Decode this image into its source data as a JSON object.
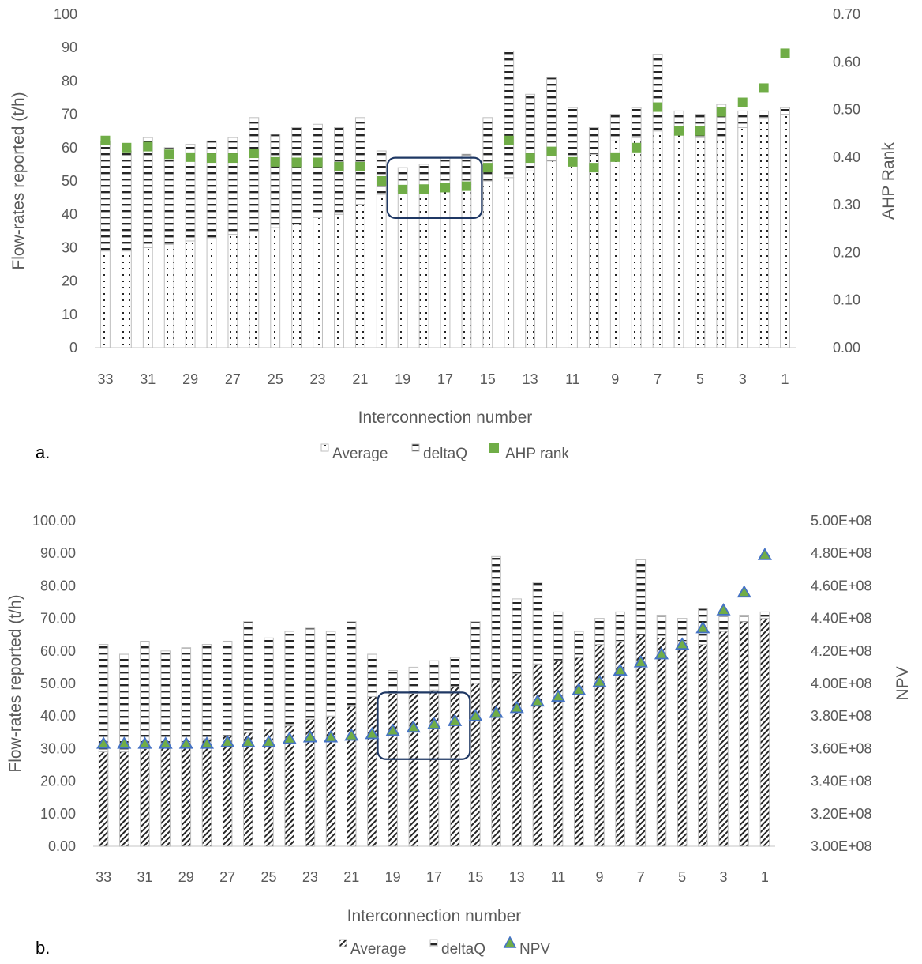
{
  "colors": {
    "ahp": "#70AD47",
    "npv_fill": "#70AD47",
    "npv_stroke": "#4472C4",
    "bar_outline": "#bfbfbf",
    "stripe_dark": "#262626",
    "highlight_box": "#1F3864",
    "grid": "#d9d9d9",
    "text": "#595959"
  },
  "chart_data": [
    {
      "type": "bar",
      "panel_label": "a.",
      "xlabel": "Interconnection number",
      "ylabel": "Flow-rates reported (t/h)",
      "y2label": "AHP Rank",
      "ylim": [
        0,
        100
      ],
      "yticks": [
        "0",
        "10",
        "20",
        "30",
        "40",
        "50",
        "60",
        "70",
        "80",
        "90",
        "100"
      ],
      "y2lim": [
        0,
        0.7
      ],
      "y2ticks": [
        "0.00",
        "0.10",
        "0.20",
        "0.30",
        "0.40",
        "0.50",
        "0.60",
        "0.70"
      ],
      "categories": [
        33,
        32,
        31,
        30,
        29,
        28,
        27,
        26,
        25,
        24,
        23,
        22,
        21,
        20,
        19,
        18,
        17,
        16,
        15,
        14,
        13,
        12,
        11,
        10,
        9,
        8,
        7,
        6,
        5,
        4,
        3,
        2,
        1
      ],
      "xtick_labels": [
        "33",
        "",
        "31",
        "",
        "29",
        "",
        "27",
        "",
        "25",
        "",
        "23",
        "",
        "21",
        "",
        "19",
        "",
        "17",
        "",
        "15",
        "",
        "13",
        "",
        "11",
        "",
        "9",
        "",
        "7",
        "",
        "5",
        "",
        "3",
        "",
        "1"
      ],
      "stacked": true,
      "series": [
        {
          "name": "Average",
          "kind": "bar",
          "pattern": "dots",
          "values": [
            29,
            29,
            30,
            31,
            32,
            33,
            34,
            35,
            36,
            37,
            39,
            40,
            43,
            46,
            47,
            47,
            48,
            49,
            50,
            51,
            53,
            56,
            57,
            58,
            62,
            63,
            65,
            64,
            63,
            62,
            66,
            69,
            70
          ]
        },
        {
          "name": "deltaQ",
          "kind": "bar",
          "pattern": "dashes",
          "values": [
            33,
            30,
            33,
            29,
            29,
            29,
            29,
            34,
            28,
            29,
            28,
            26,
            26,
            13,
            7,
            8,
            9,
            9,
            19,
            38,
            23,
            25,
            15,
            8,
            8,
            9,
            23,
            7,
            7,
            11,
            5,
            2,
            2
          ]
        },
        {
          "name": "AHP rank",
          "kind": "marker",
          "marker": "square",
          "axis": "secondary",
          "values": [
            0.435,
            0.42,
            0.422,
            0.406,
            0.4,
            0.398,
            0.398,
            0.408,
            0.39,
            0.389,
            0.389,
            0.38,
            0.38,
            0.35,
            0.332,
            0.333,
            0.336,
            0.339,
            0.378,
            0.435,
            0.398,
            0.412,
            0.39,
            0.378,
            0.4,
            0.42,
            0.505,
            0.455,
            0.455,
            0.495,
            0.515,
            0.545,
            0.618
          ]
        }
      ],
      "legend": [
        "Average",
        "deltaQ",
        "AHP rank"
      ],
      "legend_position": "bottom",
      "highlight": {
        "from_category": 19,
        "to_category": 16
      }
    },
    {
      "type": "bar",
      "panel_label": "b.",
      "xlabel": "Interconnection number",
      "ylabel": "Flow-rates reported (t/h)",
      "y2label": "NPV",
      "ylim": [
        0,
        100
      ],
      "yticks": [
        "0.00",
        "10.00",
        "20.00",
        "30.00",
        "40.00",
        "50.00",
        "60.00",
        "70.00",
        "80.00",
        "90.00",
        "100.00"
      ],
      "y2lim": [
        300000000,
        500000000
      ],
      "y2ticks": [
        "3.00E+08",
        "3.20E+08",
        "3.40E+08",
        "3.60E+08",
        "3.80E+08",
        "4.00E+08",
        "4.20E+08",
        "4.40E+08",
        "4.60E+08",
        "4.80E+08",
        "5.00E+08"
      ],
      "categories": [
        33,
        32,
        31,
        30,
        29,
        28,
        27,
        26,
        25,
        24,
        23,
        22,
        21,
        20,
        19,
        18,
        17,
        16,
        15,
        14,
        13,
        12,
        11,
        10,
        9,
        8,
        7,
        6,
        5,
        4,
        3,
        2,
        1
      ],
      "xtick_labels": [
        "33",
        "",
        "31",
        "",
        "29",
        "",
        "27",
        "",
        "25",
        "",
        "23",
        "",
        "21",
        "",
        "19",
        "",
        "17",
        "",
        "15",
        "",
        "13",
        "",
        "11",
        "",
        "9",
        "",
        "7",
        "",
        "5",
        "",
        "3",
        "",
        "1"
      ],
      "stacked": true,
      "series": [
        {
          "name": "Average",
          "kind": "bar",
          "pattern": "diagonal",
          "values": [
            29,
            29,
            30,
            31,
            32,
            33,
            34,
            35,
            36,
            37,
            39,
            40,
            43,
            46,
            47,
            47,
            48,
            49,
            50,
            51,
            53,
            56,
            57,
            58,
            62,
            63,
            65,
            64,
            63,
            62,
            66,
            69,
            70
          ]
        },
        {
          "name": "deltaQ",
          "kind": "bar",
          "pattern": "dashes",
          "values": [
            33,
            30,
            33,
            29,
            29,
            29,
            29,
            34,
            28,
            29,
            28,
            26,
            26,
            13,
            7,
            8,
            9,
            9,
            19,
            38,
            23,
            25,
            15,
            8,
            8,
            9,
            23,
            7,
            7,
            11,
            5,
            2,
            2
          ]
        },
        {
          "name": "NPV",
          "kind": "marker",
          "marker": "triangle",
          "axis": "secondary",
          "values": [
            363000000,
            363000000,
            363000000,
            363000000,
            363000000,
            363000000,
            364000000,
            364000000,
            364000000,
            366000000,
            367000000,
            367000000,
            368000000,
            369000000,
            371000000,
            373000000,
            375000000,
            377000000,
            380000000,
            382000000,
            385000000,
            389000000,
            392000000,
            396000000,
            401000000,
            408000000,
            413000000,
            418000000,
            424000000,
            434000000,
            445000000,
            456000000,
            479000000
          ]
        }
      ],
      "legend": [
        "Average",
        "deltaQ",
        "NPV"
      ],
      "legend_position": "bottom",
      "highlight": {
        "from_category": 19,
        "to_category": 16
      }
    }
  ]
}
